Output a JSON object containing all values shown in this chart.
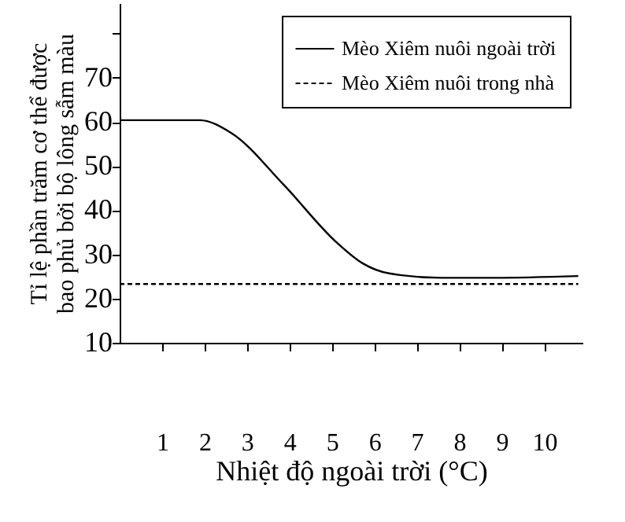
{
  "chart_data": {
    "type": "line",
    "xlabel": "Nhiệt độ ngoài trời (°C)",
    "ylabel": "Tỉ lệ phần trăm cơ thể được\nbao phủ bởi bộ lông sẫm màu",
    "xlim": [
      0,
      10.9
    ],
    "xticks": [
      1,
      2,
      3,
      4,
      5,
      6,
      7,
      8,
      9,
      10
    ],
    "ylim": [
      10,
      86.9
    ],
    "yticks": [
      10,
      20,
      30,
      40,
      50,
      60,
      70,
      {
        "value": 80,
        "label": null
      }
    ],
    "grid": false,
    "legend": "top right",
    "marker": "none",
    "series": [
      {
        "name": "Mèo Xiêm nuôi ngoài trời",
        "color": "#000000",
        "line_style": "solid",
        "x": [
          0,
          1.88,
          2.63,
          3.87,
          5.1,
          5.72,
          6.35,
          7.58,
          8.82,
          10.8
        ],
        "values": [
          60.4,
          60.4,
          57.5,
          45.7,
          32.8,
          28.0,
          25.7,
          24.7,
          24.7,
          25.1
        ]
      },
      {
        "name": "Mèo Xiêm nuôi trong nhà",
        "color": "#000000",
        "line_style": "dashed",
        "x": [
          0,
          10.8
        ],
        "values": [
          23.3,
          23.3
        ]
      }
    ]
  }
}
